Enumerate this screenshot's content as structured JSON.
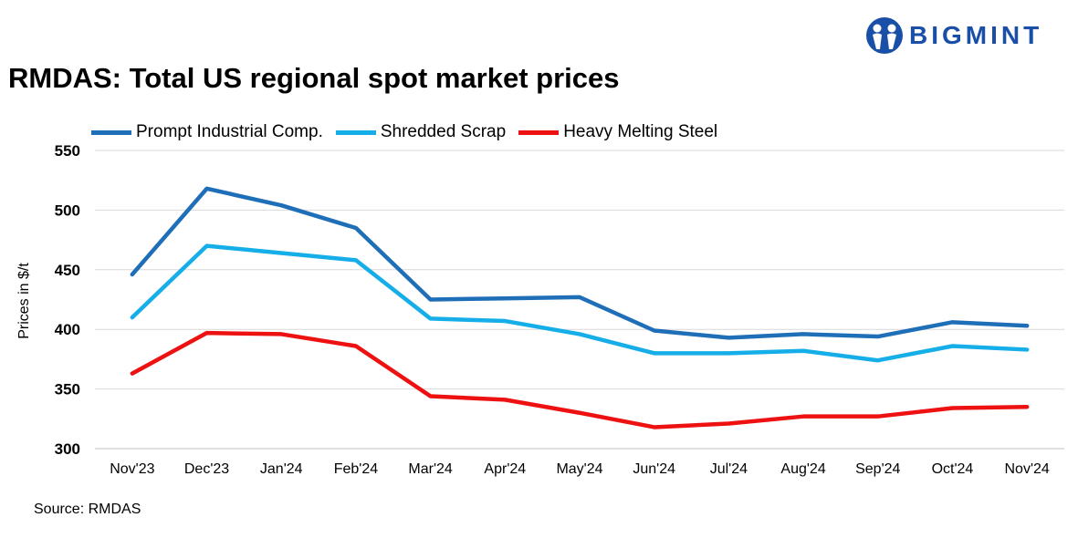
{
  "title": "RMDAS: Total US regional spot market prices",
  "source": "Source: RMDAS",
  "logo": {
    "text": "BIGMINT",
    "color": "#1a4fa8"
  },
  "chart_data": {
    "type": "line",
    "title": "RMDAS: Total US regional spot market prices",
    "xlabel": "",
    "ylabel": "Prices in $/t",
    "ylim": [
      300,
      550
    ],
    "yticks": [
      300,
      350,
      400,
      450,
      500,
      550
    ],
    "grid": true,
    "legend_position": "top-left",
    "categories": [
      "Nov'23",
      "Dec'23",
      "Jan'24",
      "Feb'24",
      "Mar'24",
      "Apr'24",
      "May'24",
      "Jun'24",
      "Jul'24",
      "Aug'24",
      "Sep'24",
      "Oct'24",
      "Nov'24"
    ],
    "series": [
      {
        "name": "Prompt Industrial Comp.",
        "color": "#1f6fb8",
        "values": [
          446,
          518,
          504,
          485,
          425,
          426,
          427,
          399,
          393,
          396,
          394,
          406,
          403
        ]
      },
      {
        "name": "Shredded Scrap",
        "color": "#16aee8",
        "values": [
          410,
          470,
          464,
          458,
          409,
          407,
          396,
          380,
          380,
          382,
          374,
          386,
          383
        ]
      },
      {
        "name": "Heavy Melting Steel",
        "color": "#ee1111",
        "values": [
          363,
          397,
          396,
          386,
          344,
          341,
          330,
          318,
          321,
          327,
          327,
          334,
          335
        ]
      }
    ]
  }
}
